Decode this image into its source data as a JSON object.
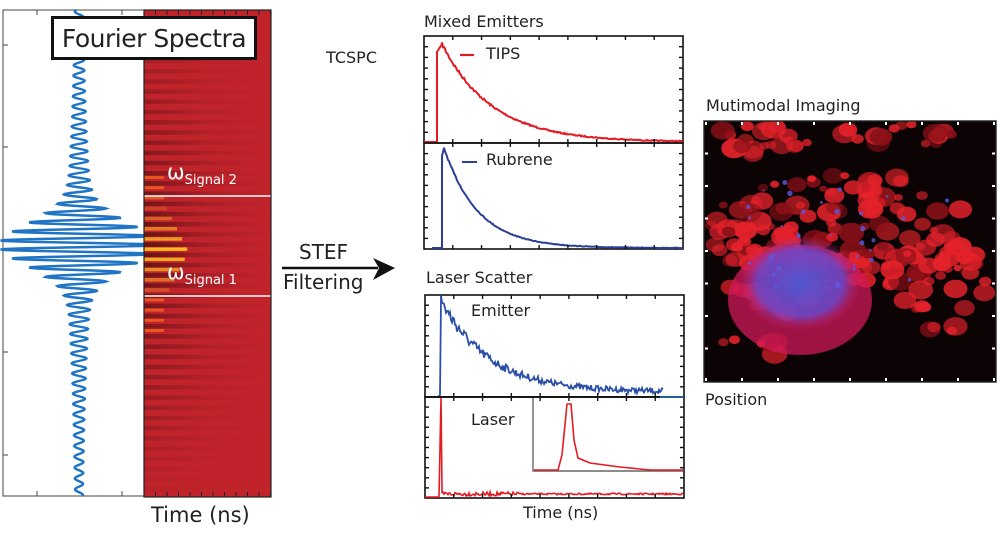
{
  "left_panel": {
    "legend_title": "Fourier Spectra",
    "signal2_symbol": "ω",
    "signal2_sub": "Signal 2",
    "signal1_symbol": "ω",
    "signal1_sub": "Signal 1",
    "xlabel": "Time (ns)"
  },
  "arrow": {
    "top_label": "STEF",
    "bottom_label": "Filtering"
  },
  "tcspc": {
    "label": "TCSPC",
    "title": "Mixed Emitters",
    "series": [
      {
        "name": "TIPS",
        "color": "#e31b23"
      },
      {
        "name": "Rubrene",
        "color": "#2b3f99"
      }
    ]
  },
  "laser_scatter": {
    "title": "Laser Scatter",
    "series": [
      {
        "name": "Emitter",
        "color": "#2b4fa8"
      },
      {
        "name": "Laser",
        "color": "#e31b23"
      }
    ],
    "xlabel": "Time (ns)"
  },
  "imaging": {
    "title": "Mutimodal Imaging",
    "xlabel": "Position"
  },
  "colors": {
    "heatmap_red": "#c1232b",
    "blue_wave": "#1f74c4"
  }
}
